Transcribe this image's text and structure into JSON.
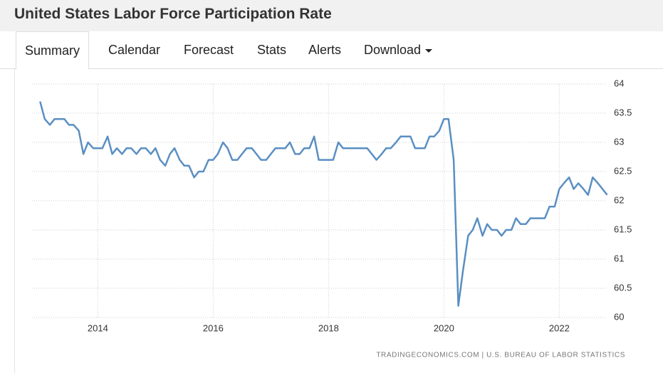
{
  "header": {
    "title": "United States Labor Force Participation Rate"
  },
  "tabs": [
    "Summary",
    "Calendar",
    "Forecast",
    "Stats",
    "Alerts",
    "Download"
  ],
  "chart_data": {
    "type": "line",
    "source": "TRADINGECONOMICS.COM | U.S. BUREAU OF LABOR STATISTICS",
    "x": [
      2013,
      2013.08,
      2013.17,
      2013.25,
      2013.33,
      2013.42,
      2013.5,
      2013.58,
      2013.67,
      2013.75,
      2013.83,
      2013.92,
      2014,
      2014.08,
      2014.17,
      2014.25,
      2014.33,
      2014.42,
      2014.5,
      2014.58,
      2014.67,
      2014.75,
      2014.83,
      2014.92,
      2015,
      2015.08,
      2015.17,
      2015.25,
      2015.33,
      2015.42,
      2015.5,
      2015.58,
      2015.67,
      2015.75,
      2015.83,
      2015.92,
      2016,
      2016.08,
      2016.17,
      2016.25,
      2016.33,
      2016.42,
      2016.5,
      2016.58,
      2016.67,
      2016.75,
      2016.83,
      2016.92,
      2017,
      2017.08,
      2017.17,
      2017.25,
      2017.33,
      2017.42,
      2017.5,
      2017.58,
      2017.67,
      2017.75,
      2017.83,
      2017.92,
      2018,
      2018.08,
      2018.17,
      2018.25,
      2018.33,
      2018.42,
      2018.5,
      2018.58,
      2018.67,
      2018.75,
      2018.83,
      2018.92,
      2019,
      2019.08,
      2019.17,
      2019.25,
      2019.33,
      2019.42,
      2019.5,
      2019.58,
      2019.67,
      2019.75,
      2019.83,
      2019.92,
      2020,
      2020.08,
      2020.17,
      2020.25,
      2020.33,
      2020.42,
      2020.5,
      2020.58,
      2020.67,
      2020.75,
      2020.83,
      2020.92,
      2021,
      2021.08,
      2021.17,
      2021.25,
      2021.33,
      2021.42,
      2021.5,
      2021.58,
      2021.67,
      2021.75,
      2021.83,
      2021.92,
      2022,
      2022.08,
      2022.17,
      2022.25,
      2022.33,
      2022.42,
      2022.5,
      2022.58,
      2022.67,
      2022.75,
      2022.83
    ],
    "series": [
      {
        "color": "#5a8fc2",
        "values": [
          63.7,
          63.4,
          63.3,
          63.4,
          63.4,
          63.4,
          63.3,
          63.3,
          63.2,
          62.8,
          63.0,
          62.9,
          62.9,
          62.9,
          63.1,
          62.8,
          62.9,
          62.8,
          62.9,
          62.9,
          62.8,
          62.9,
          62.9,
          62.8,
          62.9,
          62.7,
          62.6,
          62.8,
          62.9,
          62.7,
          62.6,
          62.6,
          62.4,
          62.5,
          62.5,
          62.7,
          62.7,
          62.8,
          63.0,
          62.9,
          62.7,
          62.7,
          62.8,
          62.9,
          62.9,
          62.8,
          62.7,
          62.7,
          62.8,
          62.9,
          62.9,
          62.9,
          63.0,
          62.8,
          62.8,
          62.9,
          62.9,
          63.1,
          62.7,
          62.7,
          62.7,
          62.7,
          63.0,
          62.9,
          62.9,
          62.9,
          62.9,
          62.9,
          62.9,
          62.8,
          62.7,
          62.8,
          62.9,
          62.9,
          63.0,
          63.1,
          63.1,
          63.1,
          62.9,
          62.9,
          62.9,
          63.1,
          63.1,
          63.2,
          63.4,
          63.4,
          62.7,
          60.2,
          60.8,
          61.4,
          61.5,
          61.7,
          61.4,
          61.6,
          61.5,
          61.5,
          61.4,
          61.5,
          61.5,
          61.7,
          61.6,
          61.6,
          61.7,
          61.7,
          61.7,
          61.7,
          61.9,
          61.9,
          62.2,
          62.3,
          62.4,
          62.2,
          62.3,
          62.2,
          62.1,
          62.4,
          62.3,
          62.2,
          62.1
        ]
      }
    ],
    "xlim": [
      2012.86,
      2022.86
    ],
    "xticks": [
      2014,
      2016,
      2018,
      2020,
      2022
    ],
    "ylim": [
      60,
      64
    ],
    "yticks": [
      60,
      60.5,
      61,
      61.5,
      62,
      62.5,
      63,
      63.5,
      64
    ],
    "grid": true
  }
}
